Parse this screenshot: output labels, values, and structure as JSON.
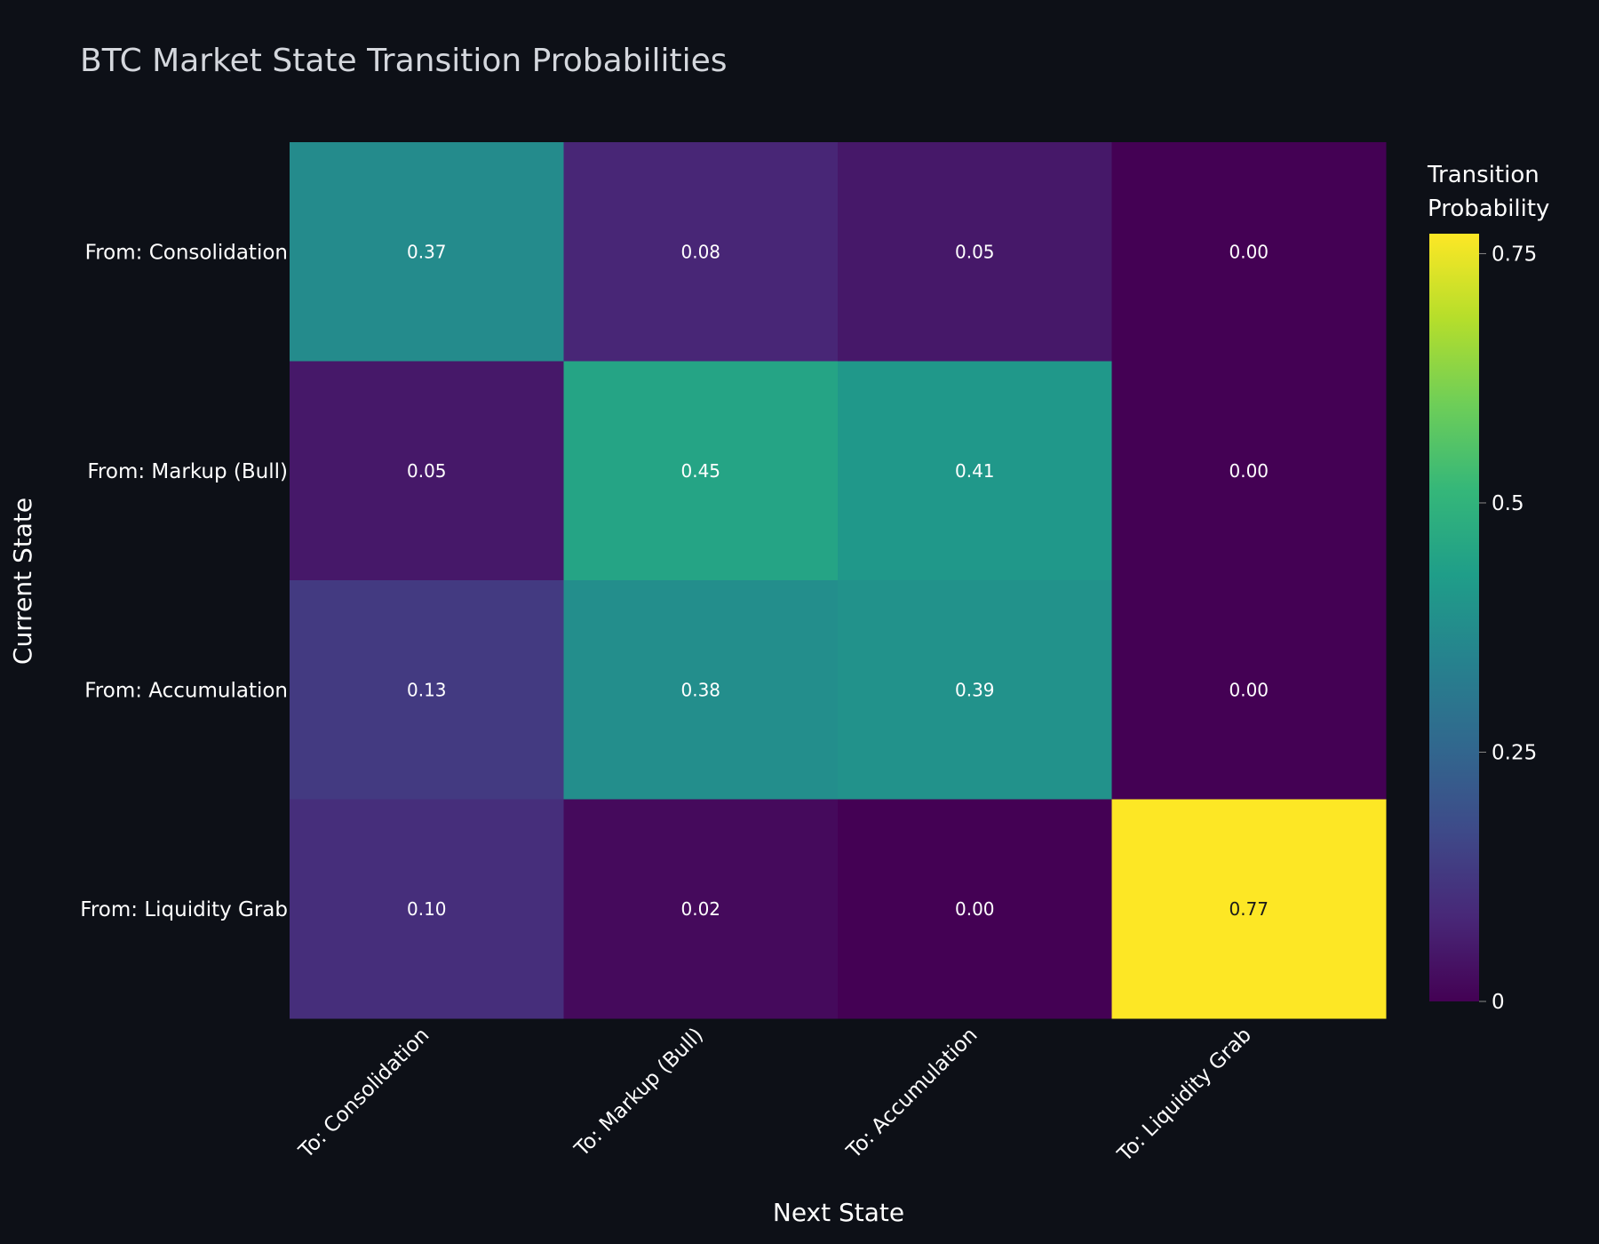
{
  "chart_data": {
    "type": "heatmap",
    "title": "BTC Market State Transition Probabilities",
    "xlabel": "Next State",
    "ylabel": "Current State",
    "x_categories": [
      "To: Consolidation",
      "To: Markup (Bull)",
      "To: Accumulation",
      "To: Liquidity Grab"
    ],
    "y_categories": [
      "From: Consolidation",
      "From: Markup (Bull)",
      "From: Accumulation",
      "From: Liquidity Grab"
    ],
    "values": [
      [
        0.37,
        0.08,
        0.05,
        0.0
      ],
      [
        0.05,
        0.45,
        0.41,
        0.0
      ],
      [
        0.13,
        0.38,
        0.39,
        0.0
      ],
      [
        0.1,
        0.02,
        0.0,
        0.77
      ]
    ],
    "cell_labels": [
      [
        "0.37",
        "0.08",
        "0.05",
        "0.00"
      ],
      [
        "0.05",
        "0.45",
        "0.41",
        "0.00"
      ],
      [
        "0.13",
        "0.38",
        "0.39",
        "0.00"
      ],
      [
        "0.10",
        "0.02",
        "0.00",
        "0.77"
      ]
    ],
    "colorscale": "Viridis",
    "zlim": [
      0,
      0.77
    ],
    "colorbar": {
      "title_line1": "Transition",
      "title_line2": "Probability",
      "ticks": [
        0,
        0.25,
        0.5,
        0.75
      ],
      "tick_labels": [
        "0",
        "0.25",
        "0.5",
        "0.75"
      ]
    }
  }
}
